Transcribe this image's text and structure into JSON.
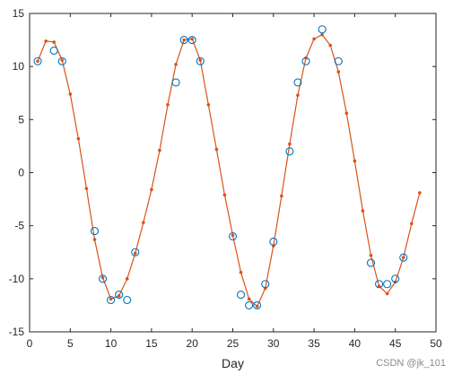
{
  "chart_data": {
    "type": "line",
    "title": "",
    "xlabel": "Day",
    "ylabel": "",
    "xlim": [
      0,
      50
    ],
    "ylim": [
      -15,
      15
    ],
    "xticks": [
      0,
      5,
      10,
      15,
      20,
      25,
      30,
      35,
      40,
      45,
      50
    ],
    "yticks": [
      -15,
      -10,
      -5,
      0,
      5,
      10,
      15
    ],
    "grid": false,
    "legend": "none",
    "series": [
      {
        "kind": "scatter",
        "marker": "open-circle",
        "color": "#0072BD",
        "x": [
          1,
          3,
          4,
          8,
          9,
          10,
          11,
          12,
          13,
          18,
          19,
          20,
          21,
          25,
          26,
          27,
          28,
          29,
          30,
          32,
          33,
          34,
          36,
          38,
          42,
          43,
          44,
          45,
          46
        ],
        "y": [
          10.5,
          11.5,
          10.5,
          -5.5,
          -10,
          -12,
          -11.5,
          -12,
          -7.5,
          8.5,
          12.5,
          12.5,
          10.5,
          -6,
          -11.5,
          -12.5,
          -12.5,
          -10.5,
          -6.5,
          2,
          8.5,
          10.5,
          13.5,
          10.5,
          -8.5,
          -10.5,
          -10.5,
          -10,
          -8
        ]
      },
      {
        "kind": "line",
        "marker": "dot",
        "color": "#D95319",
        "x": [
          1,
          2,
          3,
          4,
          5,
          6,
          7,
          8,
          9,
          10,
          11,
          12,
          13,
          14,
          15,
          16,
          17,
          18,
          19,
          20,
          21,
          22,
          23,
          24,
          25,
          26,
          27,
          28,
          29,
          30,
          31,
          32,
          33,
          34,
          35,
          36,
          37,
          38,
          39,
          40,
          41,
          42,
          43,
          44,
          45,
          46,
          47,
          48
        ],
        "y": [
          10.5,
          12.4,
          12.3,
          10.6,
          7.4,
          3.2,
          -1.5,
          -6.3,
          -9.9,
          -11.9,
          -11.6,
          -10.0,
          -7.6,
          -4.7,
          -1.6,
          2.1,
          6.4,
          10.2,
          12.5,
          12.6,
          10.6,
          6.4,
          2.2,
          -2.1,
          -5.9,
          -9.4,
          -11.9,
          -12.6,
          -10.9,
          -6.9,
          -2.2,
          2.7,
          7.3,
          10.8,
          12.6,
          13.0,
          12.0,
          9.5,
          5.6,
          1.1,
          -3.6,
          -7.8,
          -10.7,
          -11.4,
          -10.3,
          -8.0,
          -4.8,
          -1.9
        ]
      }
    ]
  },
  "watermark": "CSDN @jk_101"
}
